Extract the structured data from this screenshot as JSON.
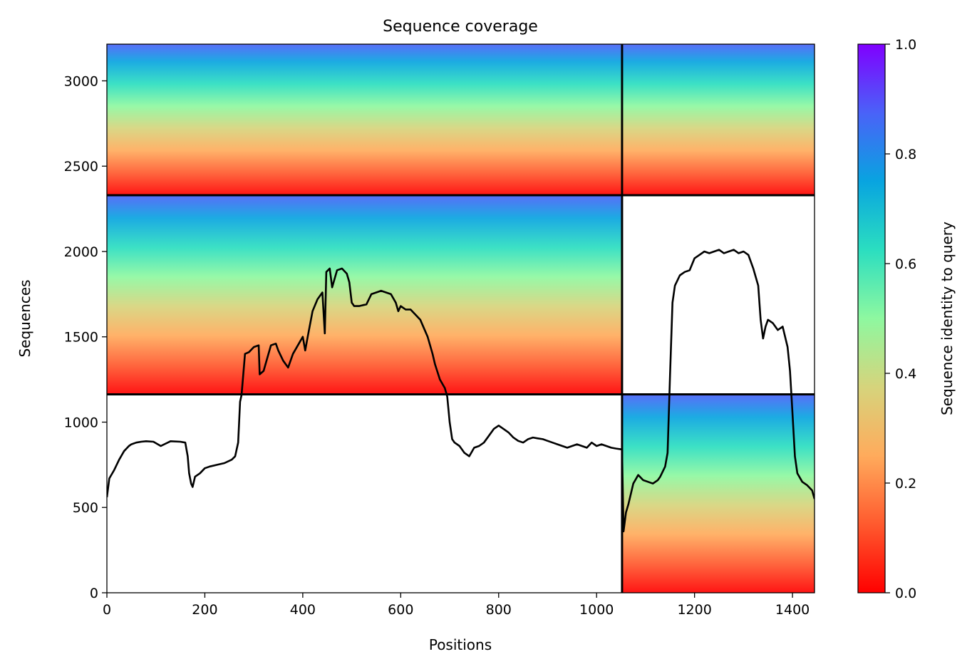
{
  "chart_data": {
    "type": "heatmap",
    "title": "Sequence coverage",
    "xlabel": "Positions",
    "ylabel": "Sequences",
    "xlim": [
      0,
      1445
    ],
    "ylim": [
      0,
      3215
    ],
    "x_ticks": [
      0,
      200,
      400,
      600,
      800,
      1000,
      1200,
      1400
    ],
    "y_ticks": [
      0,
      500,
      1000,
      1500,
      2000,
      2500,
      3000
    ],
    "grid": false,
    "block_boundaries": {
      "x": [
        1052
      ],
      "y": [
        1163,
        2330
      ]
    },
    "colorbar": {
      "label": "Sequence identity to query",
      "range": [
        0,
        1
      ],
      "ticks": [
        0.0,
        0.2,
        0.4,
        0.6,
        0.8,
        1.0
      ],
      "tick_labels": [
        "0.0",
        "0.2",
        "0.4",
        "0.6",
        "0.8",
        "1.0"
      ],
      "colormap": "rainbow",
      "colormap_stops": [
        "#ff0000",
        "#ff5a2e",
        "#ffab5c",
        "#d6d47c",
        "#8ef8a0",
        "#2bdec0",
        "#08a4e0",
        "#4a62f8",
        "#8000ff"
      ]
    },
    "coverage_blocks": [
      {
        "x_start": 0,
        "x_end": 1052,
        "y_start": 2330,
        "y_end": 3215
      },
      {
        "x_start": 1052,
        "x_end": 1445,
        "y_start": 2330,
        "y_end": 3215
      },
      {
        "x_start": 0,
        "x_end": 1052,
        "y_start": 1163,
        "y_end": 2330
      },
      {
        "x_start": 1052,
        "x_end": 1445,
        "y_start": 0,
        "y_end": 1163
      }
    ],
    "series": [
      {
        "type": "line",
        "color": "#000000",
        "x": [
          0,
          5,
          15,
          25,
          35,
          45,
          50,
          60,
          70,
          80,
          95,
          110,
          130,
          150,
          160,
          165,
          168,
          172,
          175,
          180,
          190,
          200,
          210,
          225,
          240,
          255,
          262,
          268,
          272,
          275,
          282,
          290,
          300,
          310,
          312,
          320,
          335,
          345,
          350,
          360,
          370,
          380,
          390,
          400,
          405,
          410,
          420,
          430,
          440,
          445,
          448,
          455,
          460,
          470,
          480,
          490,
          495,
          500,
          505,
          515,
          530,
          540,
          550,
          560,
          570,
          580,
          590,
          595,
          600,
          610,
          620,
          640,
          655,
          665,
          670,
          680,
          690,
          695,
          700,
          705,
          710,
          720,
          730,
          740,
          750,
          760,
          770,
          780,
          790,
          800,
          810,
          820,
          830,
          840,
          850,
          860,
          870,
          880,
          890,
          900,
          910,
          920,
          930,
          940,
          950,
          960,
          970,
          980,
          990,
          1000,
          1010,
          1020,
          1030,
          1040,
          1052,
          1055,
          1060,
          1065,
          1075,
          1085,
          1095,
          1105,
          1115,
          1125,
          1130,
          1140,
          1145,
          1150,
          1155,
          1160,
          1170,
          1180,
          1190,
          1200,
          1210,
          1220,
          1230,
          1240,
          1250,
          1260,
          1270,
          1280,
          1290,
          1300,
          1310,
          1320,
          1330,
          1335,
          1340,
          1345,
          1350,
          1360,
          1370,
          1380,
          1390,
          1395,
          1400,
          1405,
          1410,
          1420,
          1430,
          1440,
          1445
        ],
        "y": [
          560,
          670,
          720,
          780,
          830,
          860,
          870,
          880,
          885,
          888,
          885,
          860,
          888,
          885,
          880,
          800,
          700,
          640,
          620,
          680,
          700,
          730,
          740,
          750,
          760,
          780,
          800,
          880,
          1120,
          1160,
          1400,
          1410,
          1440,
          1450,
          1280,
          1300,
          1450,
          1460,
          1420,
          1360,
          1320,
          1400,
          1450,
          1500,
          1420,
          1500,
          1650,
          1720,
          1760,
          1520,
          1880,
          1900,
          1790,
          1890,
          1900,
          1870,
          1820,
          1700,
          1680,
          1680,
          1690,
          1750,
          1760,
          1770,
          1760,
          1750,
          1700,
          1650,
          1680,
          1660,
          1660,
          1600,
          1500,
          1400,
          1340,
          1250,
          1200,
          1150,
          1000,
          900,
          880,
          860,
          820,
          800,
          850,
          860,
          880,
          920,
          960,
          980,
          960,
          940,
          910,
          890,
          880,
          900,
          910,
          905,
          900,
          890,
          880,
          870,
          860,
          850,
          860,
          870,
          860,
          850,
          880,
          860,
          870,
          860,
          850,
          845,
          840,
          360,
          470,
          520,
          640,
          690,
          660,
          650,
          640,
          660,
          680,
          740,
          820,
          1280,
          1700,
          1800,
          1860,
          1880,
          1890,
          1960,
          1980,
          2000,
          1990,
          2000,
          2010,
          1990,
          2000,
          2010,
          1990,
          2000,
          1980,
          1900,
          1800,
          1600,
          1490,
          1560,
          1600,
          1580,
          1540,
          1560,
          1440,
          1300,
          1050,
          800,
          700,
          650,
          630,
          600,
          550
        ]
      }
    ]
  }
}
